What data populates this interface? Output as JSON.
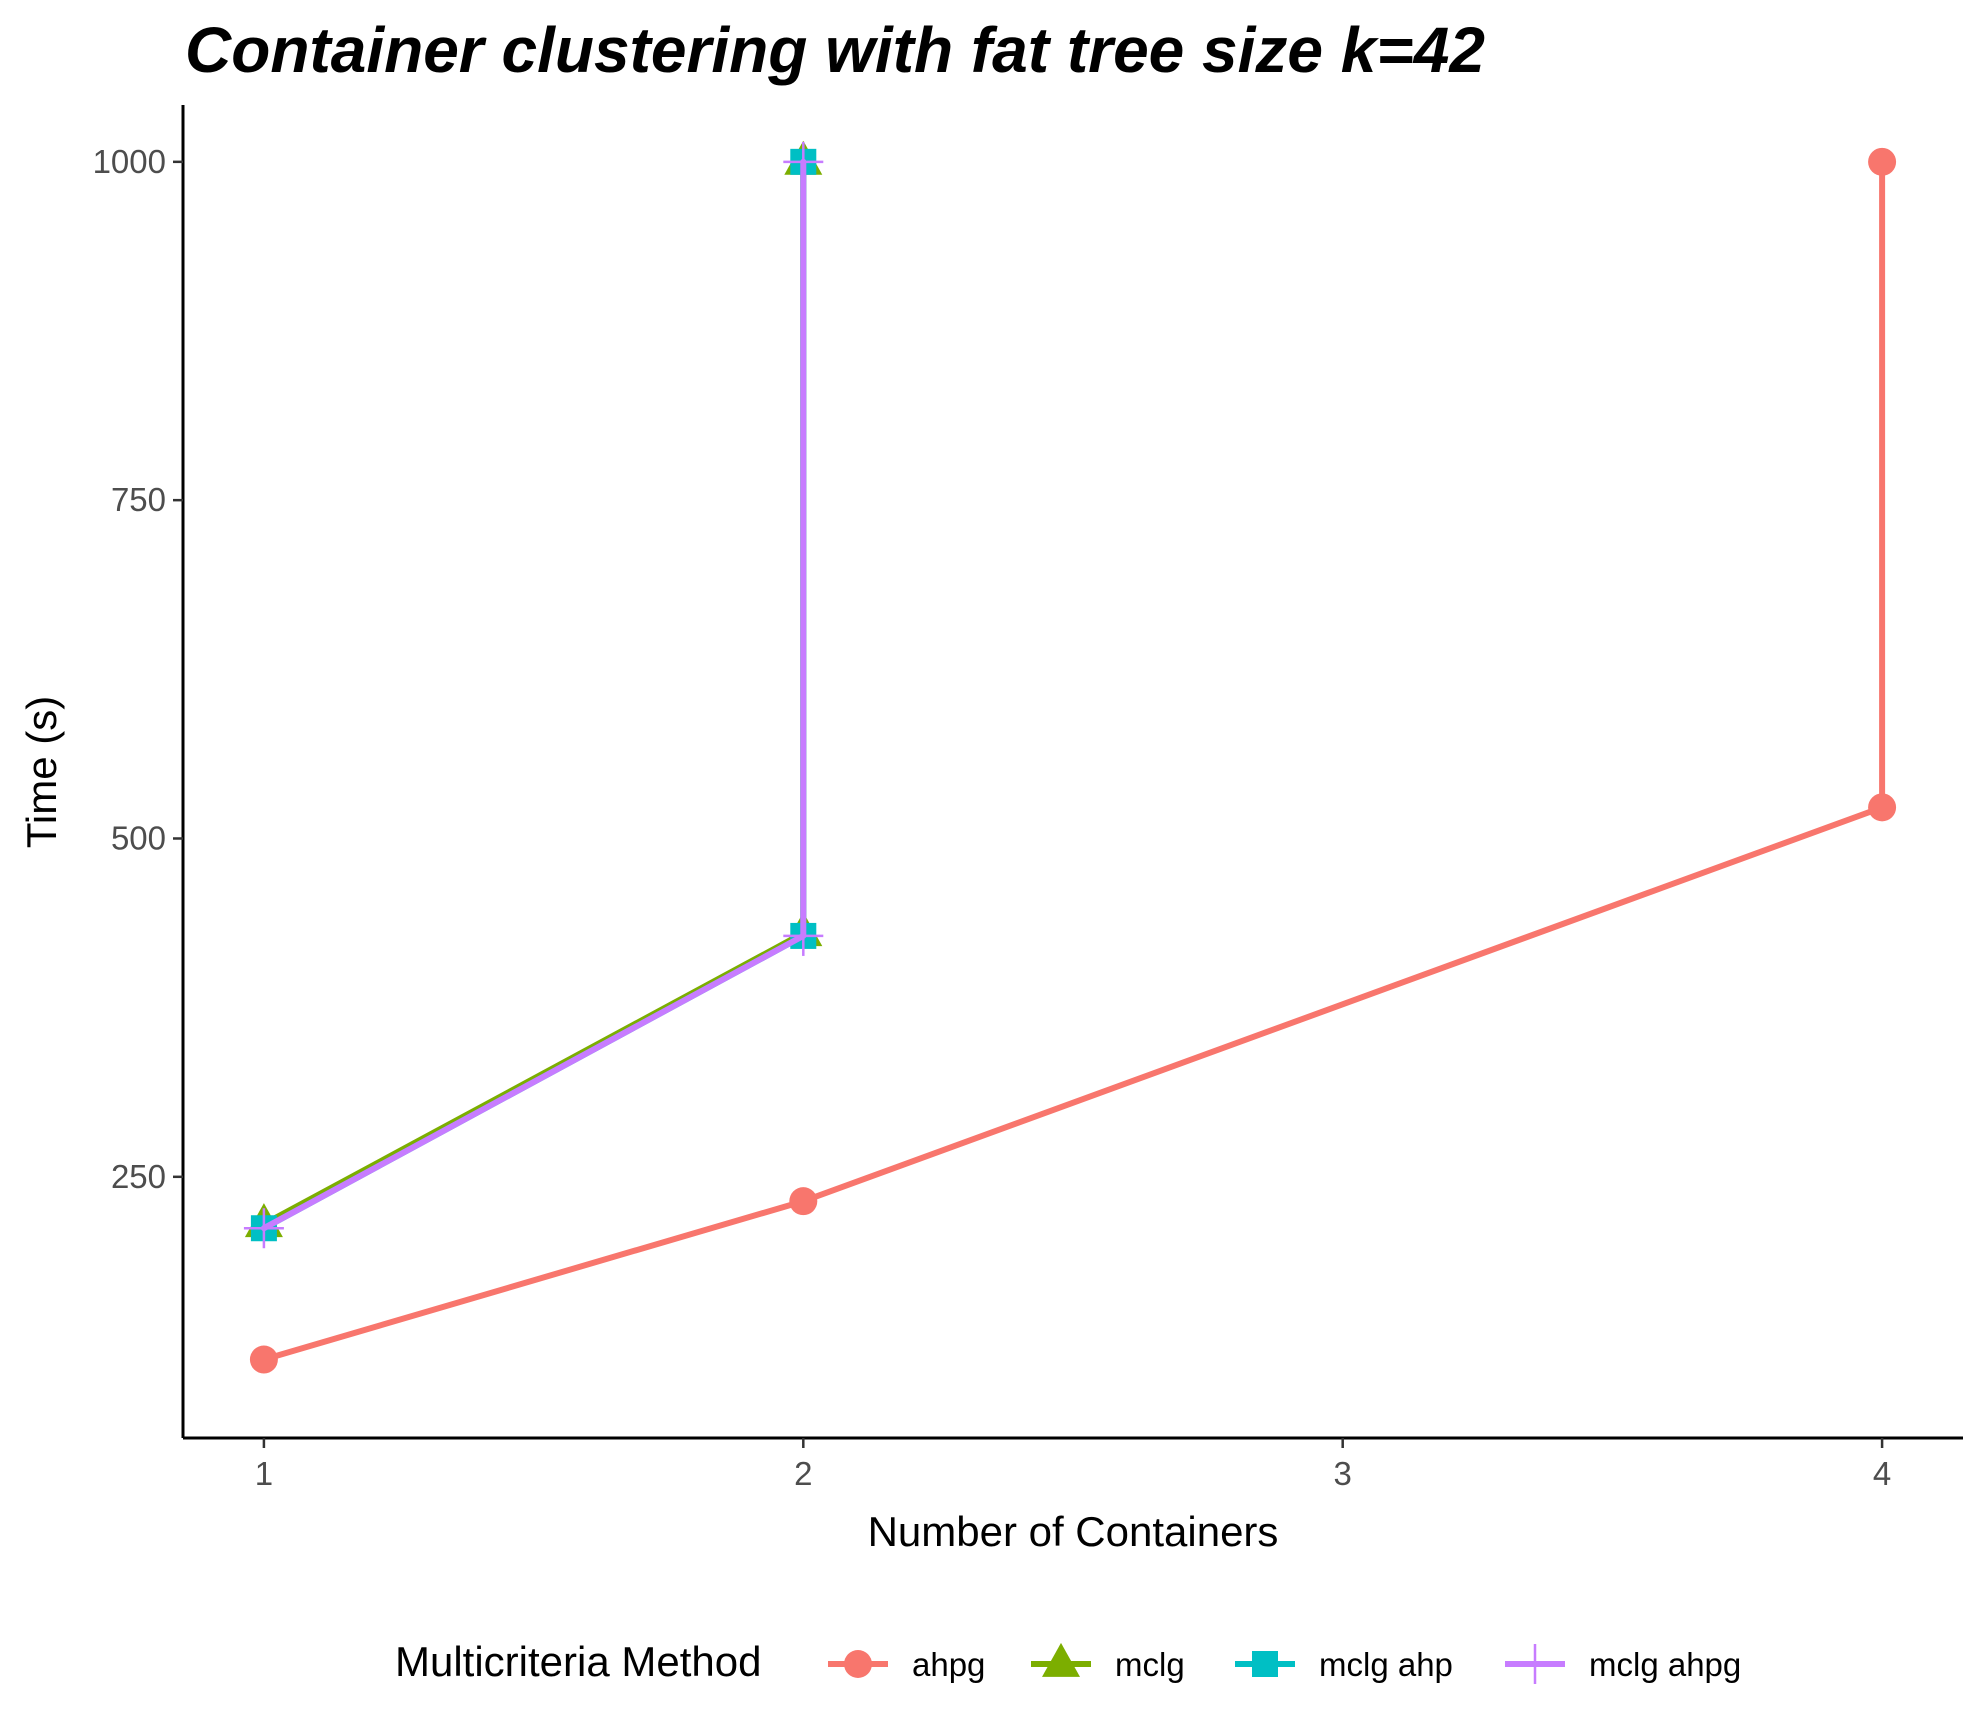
{
  "chart_data": {
    "type": "line",
    "title": "Container clustering with fat tree size k=42",
    "xlabel": "Number of Containers",
    "ylabel": "Time (s)",
    "xlim": [
      0.85,
      4.15
    ],
    "ylim": [
      57,
      1042
    ],
    "x_ticks": [
      1,
      2,
      3,
      4
    ],
    "y_ticks": [
      250,
      500,
      750,
      1000
    ],
    "grid": false,
    "legend": {
      "title": "Multicriteria Method",
      "position": "bottom"
    },
    "series": [
      {
        "name": "ahpg",
        "color": "#F8766D",
        "marker": "circle",
        "points": [
          [
            1,
            115
          ],
          [
            2,
            232
          ],
          [
            4,
            523
          ],
          [
            4,
            1000
          ]
        ]
      },
      {
        "name": "mclg",
        "color": "#7CAE00",
        "marker": "triangle",
        "points": [
          [
            1,
            215
          ],
          [
            2,
            430
          ],
          [
            2,
            1000
          ]
        ]
      },
      {
        "name": "mclg ahp",
        "color": "#00BFC4",
        "marker": "square",
        "points": [
          [
            1,
            212
          ],
          [
            2,
            428
          ],
          [
            2,
            1000
          ]
        ]
      },
      {
        "name": "mclg ahpg",
        "color": "#C77CFF",
        "marker": "cross",
        "points": [
          [
            1,
            212
          ],
          [
            2,
            428
          ],
          [
            2,
            1000
          ]
        ]
      }
    ]
  }
}
